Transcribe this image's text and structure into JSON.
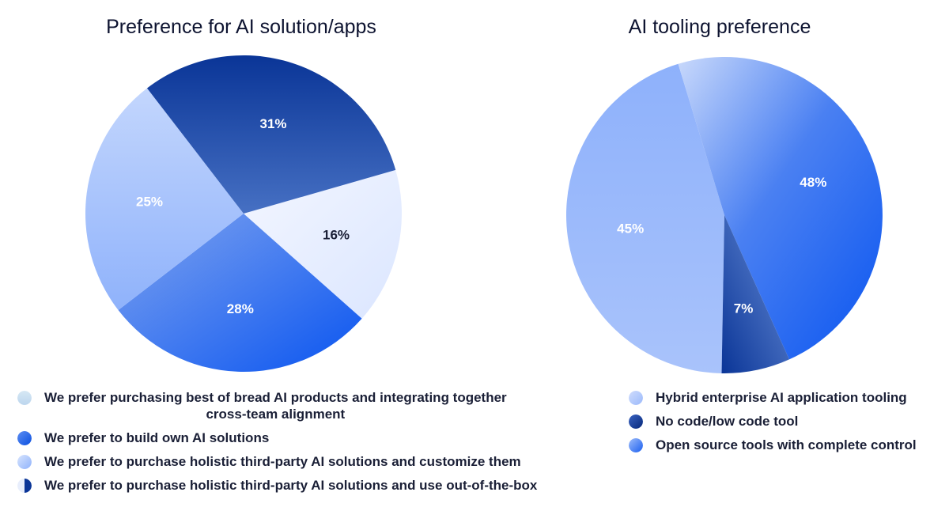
{
  "chart_data": [
    {
      "type": "pie",
      "title": "Preference for AI solution/apps",
      "slices": [
        {
          "label": "We prefer purchasing best of bread AI products and integrating together\ncross-team alignment",
          "value": 16,
          "value_label": "16%",
          "color": "#e6eeff",
          "label_color": "#1a1f36"
        },
        {
          "label": "We prefer to build own AI solutions",
          "value": 28,
          "value_label": "28%",
          "color": "#2f6ef0",
          "label_color": "#ffffff"
        },
        {
          "label": "We prefer to purchase holistic third-party AI solutions and customize them",
          "value": 25,
          "value_label": "25%",
          "color": "#a8c4fb",
          "label_color": "#ffffff"
        },
        {
          "label": "We prefer to purchase holistic third-party AI solutions and use out-of-the-box",
          "value": 31,
          "value_label": "31%",
          "color": "#1e45a8",
          "label_color": "#ffffff"
        }
      ],
      "legend": [
        {
          "label": "We prefer purchasing best of bread AI products and integrating together\ncross-team alignment",
          "color": "#c9dff2"
        },
        {
          "label": "We prefer to build own AI solutions",
          "color": "#2f6ef0"
        },
        {
          "label": "We prefer to purchase holistic third-party AI solutions and customize them",
          "color": "#a8c4fb"
        },
        {
          "label": "We prefer to purchase holistic third-party AI solutions and use out-of-the-box",
          "color": "#1e45a8"
        }
      ],
      "legend_placement": "bottom"
    },
    {
      "type": "pie",
      "title": "AI tooling preference",
      "slices": [
        {
          "label": "Hybrid enterprise AI application tooling",
          "value": 45,
          "value_label": "45%",
          "color": "#8fb2fb",
          "label_color": "#ffffff"
        },
        {
          "label": "Open source tools with complete control",
          "value": 48,
          "value_label": "48%",
          "color": "#2f6ef0",
          "label_color": "#ffffff"
        },
        {
          "label": "No code/low code tool",
          "value": 7,
          "value_label": "7%",
          "color": "#1e45a8",
          "label_color": "#ffffff"
        }
      ],
      "legend": [
        {
          "label": "Hybrid enterprise AI application tooling",
          "color": "#a8c4fb"
        },
        {
          "label": "No code/low code tool",
          "color": "#1e45a8"
        },
        {
          "label": "Open source tools with complete control",
          "color": "#2f6ef0"
        }
      ],
      "legend_placement": "bottom"
    }
  ]
}
